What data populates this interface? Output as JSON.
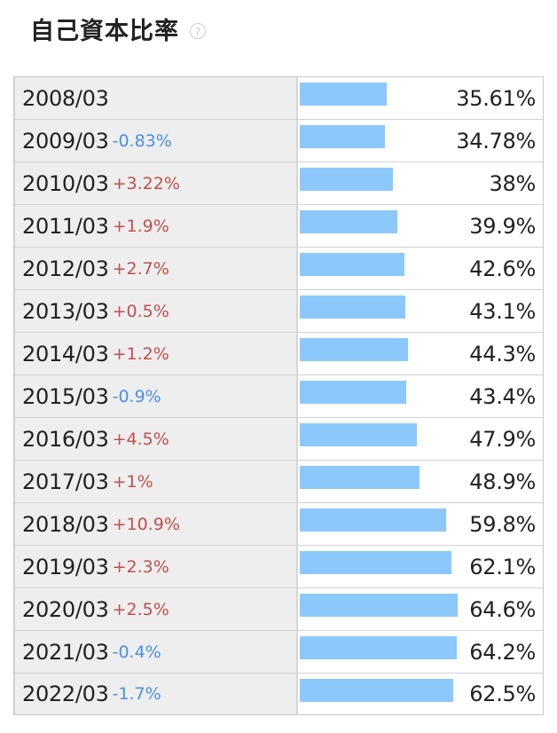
{
  "header": {
    "title": "自己資本比率",
    "help_icon": "?"
  },
  "colors": {
    "bar": "#8cc8fb",
    "increase": "#c0504d",
    "decrease": "#4a90e2",
    "label_bg": "#eeeeee"
  },
  "chart_data": {
    "type": "bar",
    "title": "自己資本比率",
    "unit": "%",
    "categories": [
      "2008/03",
      "2009/03",
      "2010/03",
      "2011/03",
      "2012/03",
      "2013/03",
      "2014/03",
      "2015/03",
      "2016/03",
      "2017/03",
      "2018/03",
      "2019/03",
      "2020/03",
      "2021/03",
      "2022/03"
    ],
    "values": [
      35.61,
      34.78,
      38,
      39.9,
      42.6,
      43.1,
      44.3,
      43.4,
      47.9,
      48.9,
      59.8,
      62.1,
      64.6,
      64.2,
      62.5
    ],
    "value_labels": [
      "35.61%",
      "34.78%",
      "38%",
      "39.9%",
      "42.6%",
      "43.1%",
      "44.3%",
      "43.4%",
      "47.9%",
      "48.9%",
      "59.8%",
      "62.1%",
      "64.6%",
      "64.2%",
      "62.5%"
    ],
    "changes": [
      "",
      "-0.83%",
      "+3.22%",
      "+1.9%",
      "+2.7%",
      "+0.5%",
      "+1.2%",
      "-0.9%",
      "+4.5%",
      "+1%",
      "+10.9%",
      "+2.3%",
      "+2.5%",
      "-0.4%",
      "-1.7%"
    ],
    "xlim": [
      0,
      100
    ],
    "orientation": "horizontal"
  }
}
